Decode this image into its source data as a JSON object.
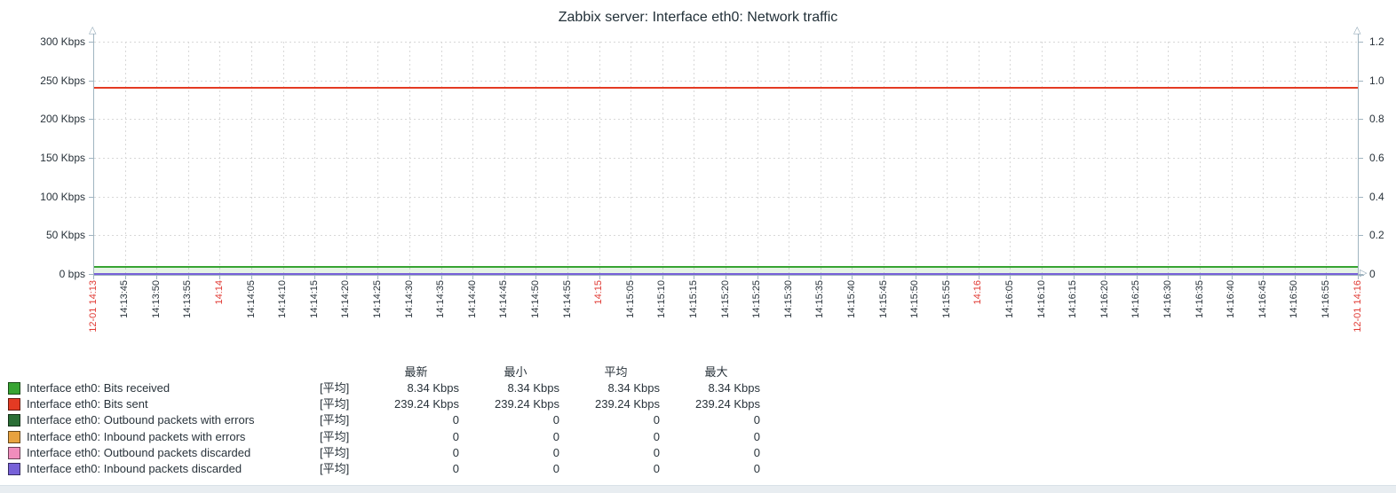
{
  "title": "Zabbix server: Interface eth0: Network traffic",
  "chart_data": {
    "type": "line",
    "title": "Zabbix server: Interface eth0: Network traffic",
    "grid": true,
    "legend_position": "bottom",
    "x_axis": {
      "start_label": "12-01 14:13",
      "end_label": "12-01 14:16",
      "tick_interval_seconds": 5
    },
    "y_left": {
      "min": 0,
      "max": 300,
      "unit": "Kbps",
      "ticks": [
        {
          "v": 0,
          "label": "0 bps"
        },
        {
          "v": 50,
          "label": "50 Kbps"
        },
        {
          "v": 100,
          "label": "100 Kbps"
        },
        {
          "v": 150,
          "label": "150 Kbps"
        },
        {
          "v": 200,
          "label": "200 Kbps"
        },
        {
          "v": 250,
          "label": "250 Kbps"
        },
        {
          "v": 300,
          "label": "300 Kbps"
        }
      ]
    },
    "y_right": {
      "min": 0,
      "max": 1.2,
      "ticks": [
        {
          "v": 0,
          "label": "0"
        },
        {
          "v": 0.2,
          "label": "0.2"
        },
        {
          "v": 0.4,
          "label": "0.4"
        },
        {
          "v": 0.6,
          "label": "0.6"
        },
        {
          "v": 0.8,
          "label": "0.8"
        },
        {
          "v": 1.0,
          "label": "1.0"
        },
        {
          "v": 1.2,
          "label": "1.2"
        }
      ]
    },
    "x_ticks": [
      {
        "label": "12-01 14:13",
        "red": true
      },
      {
        "label": "14:13:45"
      },
      {
        "label": "14:13:50"
      },
      {
        "label": "14:13:55"
      },
      {
        "label": "14:14",
        "red": true
      },
      {
        "label": "14:14:05"
      },
      {
        "label": "14:14:10"
      },
      {
        "label": "14:14:15"
      },
      {
        "label": "14:14:20"
      },
      {
        "label": "14:14:25"
      },
      {
        "label": "14:14:30"
      },
      {
        "label": "14:14:35"
      },
      {
        "label": "14:14:40"
      },
      {
        "label": "14:14:45"
      },
      {
        "label": "14:14:50"
      },
      {
        "label": "14:14:55"
      },
      {
        "label": "14:15",
        "red": true
      },
      {
        "label": "14:15:05"
      },
      {
        "label": "14:15:10"
      },
      {
        "label": "14:15:15"
      },
      {
        "label": "14:15:20"
      },
      {
        "label": "14:15:25"
      },
      {
        "label": "14:15:30"
      },
      {
        "label": "14:15:35"
      },
      {
        "label": "14:15:40"
      },
      {
        "label": "14:15:45"
      },
      {
        "label": "14:15:50"
      },
      {
        "label": "14:15:55"
      },
      {
        "label": "14:16",
        "red": true
      },
      {
        "label": "14:16:05"
      },
      {
        "label": "14:16:10"
      },
      {
        "label": "14:16:15"
      },
      {
        "label": "14:16:20"
      },
      {
        "label": "14:16:25"
      },
      {
        "label": "14:16:30"
      },
      {
        "label": "14:16:35"
      },
      {
        "label": "14:16:40"
      },
      {
        "label": "14:16:45"
      },
      {
        "label": "14:16:50"
      },
      {
        "label": "14:16:55"
      },
      {
        "label": "12-01 14:16",
        "red": true
      }
    ],
    "series": [
      {
        "name": "Interface eth0: Bits received",
        "color": "#37A432",
        "axis": "left",
        "value": 8.34,
        "fill": true
      },
      {
        "name": "Interface eth0: Bits sent",
        "color": "#E43A23",
        "axis": "left",
        "value": 239.24,
        "fill": false
      },
      {
        "name": "Interface eth0: Outbound packets with errors",
        "color": "#2A6E35",
        "axis": "right",
        "value": 0,
        "fill": false
      },
      {
        "name": "Interface eth0: Inbound packets with errors",
        "color": "#E7A23F",
        "axis": "right",
        "value": 0,
        "fill": false
      },
      {
        "name": "Interface eth0: Outbound packets discarded",
        "color": "#F08DBC",
        "axis": "right",
        "value": 0,
        "fill": false
      },
      {
        "name": "Interface eth0: Inbound packets discarded",
        "color": "#7761D8",
        "axis": "right",
        "value": 0,
        "fill": false
      }
    ]
  },
  "legend": {
    "headers": [
      "最新",
      "最小",
      "平均",
      "最大"
    ],
    "rows": [
      {
        "swatch": "#37A432",
        "label": "Interface eth0: Bits received",
        "func": "[平均]",
        "values": [
          "8.34 Kbps",
          "8.34 Kbps",
          "8.34 Kbps",
          "8.34 Kbps"
        ]
      },
      {
        "swatch": "#E43A23",
        "label": "Interface eth0: Bits sent",
        "func": "[平均]",
        "values": [
          "239.24 Kbps",
          "239.24 Kbps",
          "239.24 Kbps",
          "239.24 Kbps"
        ]
      },
      {
        "swatch": "#2A6E35",
        "label": "Interface eth0: Outbound packets with errors",
        "func": "[平均]",
        "values": [
          "0",
          "0",
          "0",
          "0"
        ]
      },
      {
        "swatch": "#E7A23F",
        "label": "Interface eth0: Inbound packets with errors",
        "func": "[平均]",
        "values": [
          "0",
          "0",
          "0",
          "0"
        ]
      },
      {
        "swatch": "#F08DBC",
        "label": "Interface eth0: Outbound packets discarded",
        "func": "[平均]",
        "values": [
          "0",
          "0",
          "0",
          "0"
        ]
      },
      {
        "swatch": "#7761D8",
        "label": "Interface eth0: Inbound packets discarded",
        "func": "[平均]",
        "values": [
          "0",
          "0",
          "0",
          "0"
        ]
      }
    ]
  },
  "colors": {
    "axis": "#A0B4C0",
    "grid": "#D8D8D8",
    "text": "#28323A",
    "red_label": "#E03933",
    "title": "#223038",
    "footer_bg": "#E8EDF1"
  }
}
